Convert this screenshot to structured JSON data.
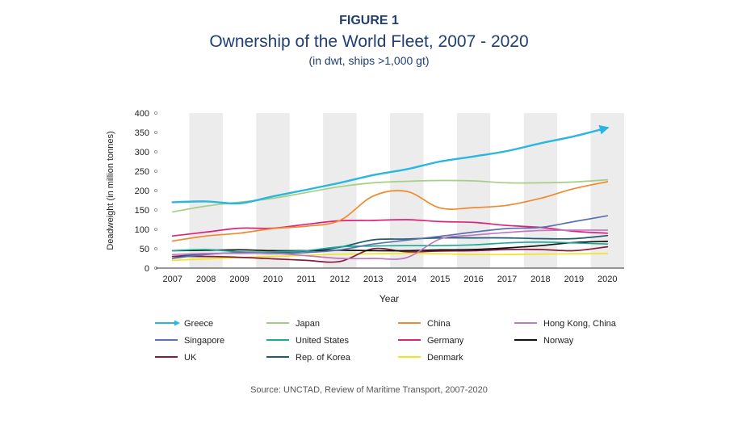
{
  "figure_label": "FIGURE 1",
  "source": "Source: UNCTAD, Review of Maritime Transport, 2007-2020",
  "chart_data": {
    "type": "line",
    "title": "Ownership of the World Fleet, 2007 - 2020",
    "subtitle": "(in dwt, ships >1,000 gt)",
    "xlabel": "Year",
    "ylabel": "Deadweight (in million tonnes)",
    "x": [
      2007,
      2008,
      2009,
      2010,
      2011,
      2012,
      2013,
      2014,
      2015,
      2016,
      2017,
      2018,
      2019,
      2020
    ],
    "ylim": [
      0,
      400
    ],
    "yticks": [
      0,
      50,
      100,
      150,
      200,
      250,
      300,
      350,
      400
    ],
    "grid": "alternating vertical bands",
    "legend_position": "bottom",
    "series": [
      {
        "name": "Greece",
        "color": "#29b6e0",
        "marker": "arrow",
        "values": [
          170,
          172,
          167,
          185,
          202,
          220,
          240,
          255,
          275,
          288,
          302,
          322,
          340,
          362
        ]
      },
      {
        "name": "Japan",
        "color": "#a5cf84",
        "values": [
          145,
          160,
          170,
          180,
          195,
          210,
          220,
          224,
          226,
          225,
          220,
          220,
          222,
          228
        ]
      },
      {
        "name": "China",
        "color": "#f08a2e",
        "values": [
          70,
          83,
          90,
          102,
          108,
          123,
          186,
          198,
          155,
          156,
          162,
          180,
          205,
          223
        ]
      },
      {
        "name": "Hong Kong, China",
        "color": "#c178c4",
        "values": [
          35,
          38,
          38,
          38,
          32,
          25,
          25,
          27,
          75,
          85,
          92,
          97,
          98,
          98
        ]
      },
      {
        "name": "Singapore",
        "color": "#5b72b0",
        "values": [
          25,
          35,
          40,
          37,
          40,
          47,
          62,
          72,
          82,
          93,
          102,
          105,
          120,
          135
        ]
      },
      {
        "name": "United States",
        "color": "#1aaa95",
        "values": [
          45,
          48,
          42,
          42,
          45,
          55,
          57,
          58,
          58,
          60,
          65,
          67,
          65,
          62
        ]
      },
      {
        "name": "Germany",
        "color": "#e0217b",
        "values": [
          83,
          93,
          103,
          103,
          113,
          122,
          123,
          125,
          120,
          118,
          110,
          105,
          95,
          90
        ]
      },
      {
        "name": "Norway",
        "color": "#111111",
        "values": [
          45,
          46,
          47,
          45,
          45,
          46,
          45,
          45,
          47,
          48,
          52,
          58,
          66,
          69
        ]
      },
      {
        "name": "UK",
        "color": "#8b1a3a",
        "values": [
          30,
          30,
          28,
          24,
          20,
          17,
          50,
          42,
          44,
          45,
          48,
          48,
          45,
          55
        ]
      },
      {
        "name": "Rep. of Korea",
        "color": "#1f5a70",
        "values": [
          30,
          36,
          40,
          40,
          44,
          54,
          73,
          75,
          78,
          78,
          78,
          76,
          76,
          84
        ]
      },
      {
        "name": "Denmark",
        "color": "#f2e420",
        "values": [
          20,
          24,
          27,
          30,
          33,
          36,
          37,
          38,
          37,
          35,
          35,
          36,
          37,
          38
        ]
      }
    ]
  }
}
